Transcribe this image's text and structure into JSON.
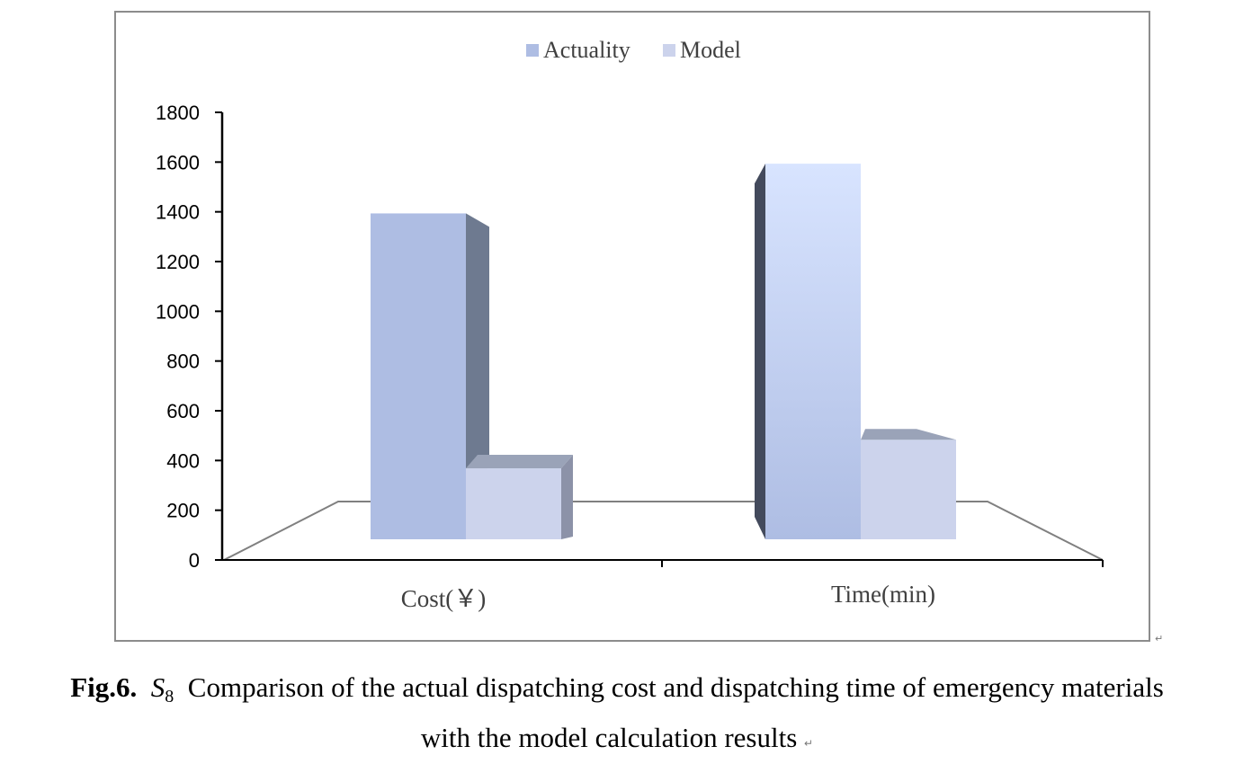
{
  "chart_data": {
    "type": "bar",
    "categories": [
      "Cost(￥)",
      "Time(min)"
    ],
    "series": [
      {
        "name": "Actuality",
        "values": [
          1390,
          1590
        ],
        "color": "#aebde3"
      },
      {
        "name": "Model",
        "values": [
          365,
          480
        ],
        "color": "#ccd3ec"
      }
    ],
    "ylim": [
      0,
      1800
    ],
    "yticks": [
      "0",
      "200",
      "400",
      "600",
      "800",
      "1000",
      "1200",
      "1400",
      "1600",
      "1800"
    ],
    "legend_position": "top-center"
  },
  "caption": {
    "fig_label": "Fig.6.",
    "symbol": "S",
    "subscript": "8",
    "line1": "Comparison of the actual dispatching cost and dispatching time of emergency materials",
    "line2": "with the model calculation results",
    "return_mark": "↵"
  }
}
